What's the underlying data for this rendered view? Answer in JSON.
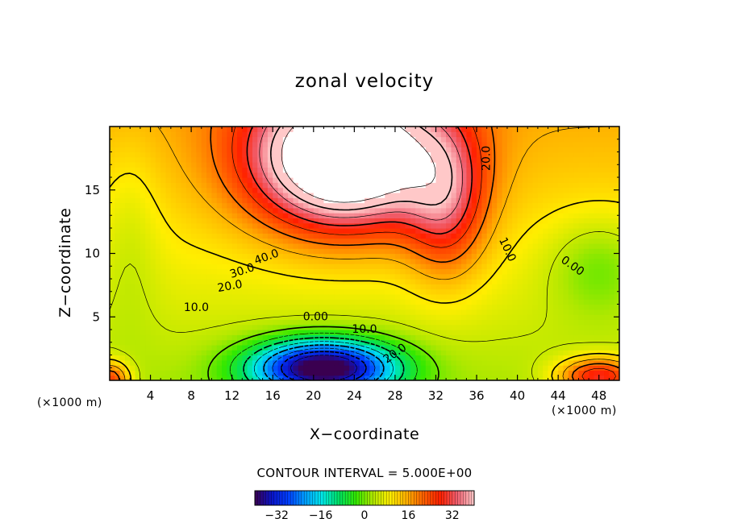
{
  "chart_data": {
    "type": "contour",
    "title": "zonal velocity",
    "xlabel": "X−coordinate",
    "ylabel": "Z−coordinate",
    "x_unit_label": "(×1000 m)",
    "z_unit_label": "(×1000 m)",
    "xlim": [
      0,
      50
    ],
    "ylim": [
      0,
      20
    ],
    "x_ticks": [
      4,
      8,
      12,
      16,
      20,
      24,
      28,
      32,
      36,
      40,
      44,
      48
    ],
    "y_ticks": [
      5,
      10,
      15
    ],
    "contour_interval_text": "CONTOUR INTERVAL = 5.000E+00",
    "contour_labels": [
      {
        "text": "40.0",
        "x": 15.4,
        "z": 9.7,
        "angle": 20
      },
      {
        "text": "30.0",
        "x": 13.0,
        "z": 8.6,
        "angle": 18
      },
      {
        "text": "20.0",
        "x": 11.8,
        "z": 7.4,
        "angle": 10
      },
      {
        "text": "10.0",
        "x": 8.5,
        "z": 5.7,
        "angle": 0
      },
      {
        "text": "0.00",
        "x": 20.2,
        "z": 5.0,
        "angle": 0
      },
      {
        "text": "10.0",
        "x": 25.0,
        "z": 4.0,
        "angle": 0
      },
      {
        "text": "20.0",
        "x": 28.0,
        "z": 2.1,
        "angle": 35
      },
      {
        "text": "20.0",
        "x": 37.0,
        "z": 17.5,
        "angle": 90
      },
      {
        "text": "10.0",
        "x": 39.0,
        "z": 10.3,
        "angle": -65
      },
      {
        "text": "0.00",
        "x": 45.4,
        "z": 9.0,
        "angle": -35
      }
    ],
    "colorbar": {
      "min": -40,
      "max": 40,
      "ticks": [
        "−32",
        "−16",
        "0",
        "16",
        "32"
      ],
      "tick_values": [
        -32,
        -16,
        0,
        16,
        32
      ]
    },
    "features": {
      "max_exceeding_region_color": "#ffffff",
      "max_region_note_value": 45,
      "min_core_value": -35
    }
  },
  "colors": {
    "colormap": [
      "#3a0050",
      "#0a14c8",
      "#0040ff",
      "#00a0ff",
      "#00e8e8",
      "#00e060",
      "#33e800",
      "#b0e800",
      "#ffee00",
      "#ffb000",
      "#ff6000",
      "#ff2000",
      "#f06070",
      "#ffc8c8"
    ]
  }
}
